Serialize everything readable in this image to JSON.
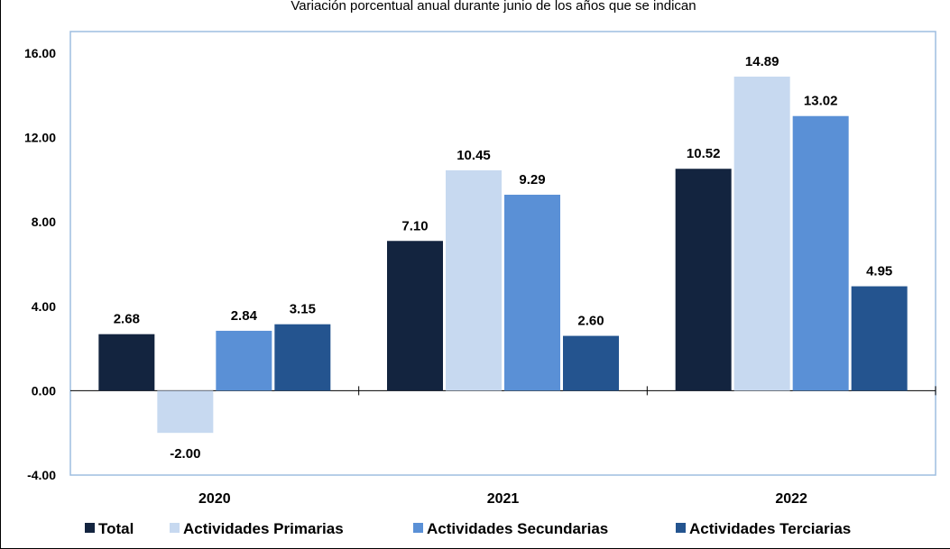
{
  "chart_data": {
    "type": "bar",
    "subtitle": "Variación porcentual anual durante junio de los años que se indican",
    "categories": [
      "2020",
      "2021",
      "2022"
    ],
    "series": [
      {
        "name": "Total",
        "color": "#13243f",
        "values": [
          2.68,
          7.1,
          10.52
        ]
      },
      {
        "name": "Actividades Primarias",
        "color": "#c7d9f0",
        "values": [
          -2.0,
          10.45,
          14.89
        ]
      },
      {
        "name": "Actividades Secundarias",
        "color": "#5a90d6",
        "values": [
          2.84,
          9.29,
          13.02
        ]
      },
      {
        "name": "Actividades Terciarias",
        "color": "#24548f",
        "values": [
          3.15,
          2.6,
          4.95
        ]
      }
    ],
    "ylim": [
      -4,
      16
    ],
    "yticks": [
      "16.00",
      "12.00",
      "8.00",
      "4.00",
      "0.00",
      "-4.00"
    ],
    "ytick_values": [
      16,
      12,
      8,
      4,
      0,
      -4
    ],
    "data_labels": [
      [
        "2.68",
        "7.10",
        "10.52"
      ],
      [
        "-2.00",
        "10.45",
        "14.89"
      ],
      [
        "2.84",
        "9.29",
        "13.02"
      ],
      [
        "3.15",
        "2.60",
        "4.95"
      ]
    ],
    "grid": false,
    "legend_position": "bottom",
    "plot_border_color": "#9dbde0"
  }
}
